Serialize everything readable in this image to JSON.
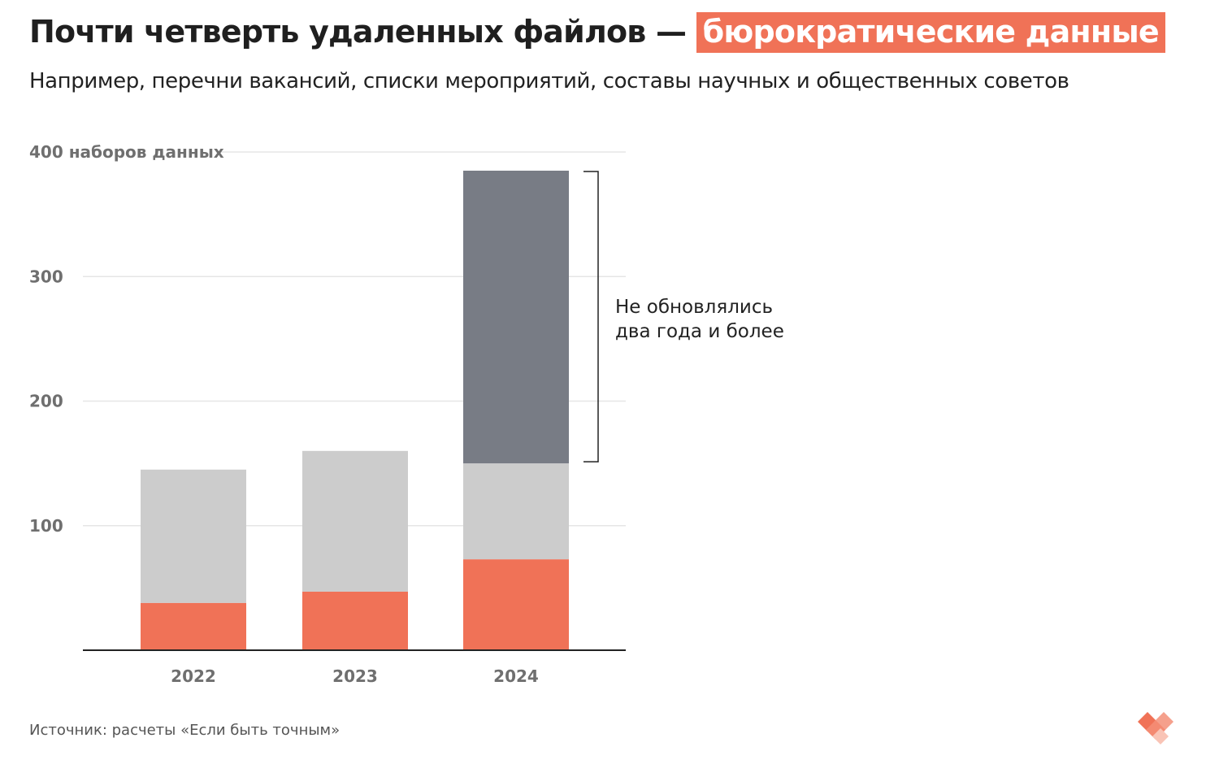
{
  "title": {
    "main": "Почти четверть удаленных файлов — ",
    "highlight": "бюрократические данные"
  },
  "subtitle": "Например, перечни вакансий, списки мероприятий, составы научных и общественных советов",
  "source": "Источник: расчеты «Если быть точным»",
  "colors": {
    "highlight": "#f07257",
    "segment_orange": "#f07257",
    "segment_light": "#cccccc",
    "segment_dark": "#787c85",
    "grid": "#e6e6e6",
    "axis": "#222222"
  },
  "chart_data": {
    "type": "bar",
    "stacked": true,
    "categories": [
      "2022",
      "2023",
      "2024"
    ],
    "series": [
      {
        "values": [
          38,
          47,
          73
        ]
      },
      {
        "values": [
          107,
          113,
          77
        ]
      },
      {
        "values": [
          0,
          0,
          235
        ]
      }
    ],
    "ylim": [
      0,
      400
    ],
    "yticks": [
      100,
      200,
      300,
      400
    ],
    "ytick_labels": [
      "100",
      "200",
      "300",
      "400 наборов данных"
    ],
    "grid": true,
    "annotation": {
      "line1": "Не обновлялись",
      "line2": "два года и более"
    }
  }
}
